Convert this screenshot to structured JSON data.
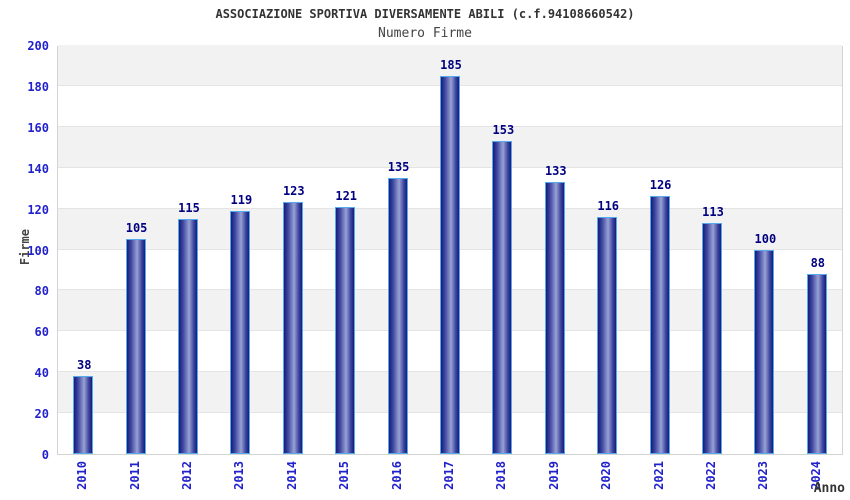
{
  "header": {
    "title": "ASSOCIAZIONE SPORTIVA DIVERSAMENTE ABILI (c.f.94108660542)",
    "subtitle": "Numero Firme"
  },
  "chart_data": {
    "type": "bar",
    "title": "ASSOCIAZIONE SPORTIVA DIVERSAMENTE ABILI (c.f.94108660542)",
    "subtitle": "Numero Firme",
    "categories": [
      "2010",
      "2011",
      "2012",
      "2013",
      "2014",
      "2015",
      "2016",
      "2017",
      "2018",
      "2019",
      "2020",
      "2021",
      "2022",
      "2023",
      "2024"
    ],
    "values": [
      38,
      105,
      115,
      119,
      123,
      121,
      135,
      185,
      153,
      133,
      116,
      126,
      113,
      100,
      88
    ],
    "xlabel": "Anno",
    "ylabel": "Firme",
    "ylim": [
      0,
      200
    ],
    "ytick_step": 20,
    "grid": "horizontal-bands-alternating",
    "legend": "none",
    "colors": {
      "bar_edge_dark": "#161c78",
      "bar_mid": "#3d46a0",
      "bar_center_light": "#99a2d4",
      "bar_border": "#55aaee",
      "tick_label": "#2222cc",
      "value_label": "#000080",
      "band_gray": "#f2f2f2",
      "band_white": "#ffffff",
      "gridline": "#e4e4e4",
      "title_color": "#333333",
      "axis_title_color": "#444444"
    }
  }
}
